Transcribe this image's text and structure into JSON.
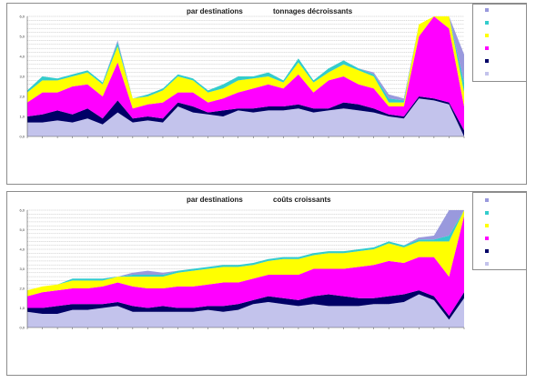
{
  "charts": [
    {
      "title_left": "par destinations",
      "title_right": "tonnages décroissants"
    },
    {
      "title_left": "par destinations",
      "title_right": "coûts croissants"
    }
  ],
  "chart_data": [
    {
      "type": "area",
      "title": "par destinations tonnages décroissants",
      "ylim": [
        0,
        6
      ],
      "yticks": [
        "0,0",
        "1,0",
        "2,0",
        "3,0",
        "4,0",
        "5,0",
        "6,0"
      ],
      "grid": true,
      "legend_position": "right",
      "series_colors": [
        "#c3c3ec",
        "#000066",
        "#ff00ff",
        "#ffff00",
        "#33cccc",
        "#9999dd"
      ],
      "legend_colors": [
        "#9999dd",
        "#33cccc",
        "#ffff00",
        "#ff00ff",
        "#000066",
        "#c3c3ec"
      ],
      "series": [
        {
          "values": [
            0.7,
            0.7,
            0.8,
            0.7,
            0.9,
            0.6,
            1.2,
            0.7,
            0.8,
            0.7,
            1.5,
            1.2,
            1.1,
            1.0,
            1.3,
            1.2,
            1.3,
            1.3,
            1.4,
            1.2,
            1.3,
            1.4,
            1.3,
            1.2,
            1.0,
            0.9,
            1.9,
            1.8,
            1.6,
            0.0
          ]
        },
        {
          "values": [
            0.3,
            0.4,
            0.5,
            0.4,
            0.5,
            0.3,
            0.6,
            0.2,
            0.2,
            0.2,
            0.2,
            0.3,
            0.1,
            0.3,
            0.1,
            0.2,
            0.2,
            0.2,
            0.2,
            0.2,
            0.1,
            0.3,
            0.3,
            0.2,
            0.1,
            0.1,
            0.1,
            0.1,
            0.1,
            0.3
          ]
        },
        {
          "values": [
            0.7,
            1.1,
            0.9,
            1.4,
            1.2,
            1.1,
            1.9,
            0.5,
            0.6,
            0.8,
            0.5,
            0.7,
            0.5,
            0.6,
            0.8,
            1.0,
            1.1,
            0.9,
            1.5,
            0.8,
            1.4,
            1.3,
            1.0,
            1.0,
            0.4,
            0.5,
            3.0,
            5.2,
            3.7,
            1.2
          ]
        },
        {
          "values": [
            0.5,
            0.6,
            0.6,
            0.5,
            0.6,
            0.6,
            0.8,
            0.5,
            0.4,
            0.6,
            0.8,
            0.6,
            0.5,
            0.5,
            0.6,
            0.5,
            0.4,
            0.3,
            0.6,
            0.5,
            0.4,
            0.6,
            0.7,
            0.6,
            0.2,
            0.2,
            0.6,
            1.2,
            0.9,
            0.7
          ]
        },
        {
          "values": [
            0.1,
            0.2,
            0.1,
            0.1,
            0.1,
            0.1,
            0.2,
            0.0,
            0.1,
            0.1,
            0.1,
            0.1,
            0.1,
            0.2,
            0.2,
            0.1,
            0.2,
            0.1,
            0.2,
            0.1,
            0.2,
            0.2,
            0.1,
            0.1,
            0.2,
            0.1,
            0.0,
            0.1,
            0.1,
            0.5
          ]
        },
        {
          "values": [
            0.0,
            0.0,
            0.0,
            0.0,
            0.0,
            0.0,
            0.1,
            0.0,
            0.0,
            0.0,
            0.0,
            0.0,
            0.0,
            0.0,
            0.0,
            0.0,
            0.0,
            0.0,
            0.0,
            0.0,
            0.0,
            0.0,
            0.0,
            0.1,
            0.2,
            0.1,
            0.0,
            0.2,
            0.3,
            1.4
          ]
        }
      ]
    },
    {
      "type": "area",
      "title": "par destinations coûts croissants",
      "ylim": [
        0,
        6
      ],
      "yticks": [
        "0,0",
        "1,0",
        "2,0",
        "3,0",
        "4,0",
        "5,0",
        "6,0"
      ],
      "grid": true,
      "legend_position": "right",
      "series_colors": [
        "#c3c3ec",
        "#000066",
        "#ff00ff",
        "#ffff00",
        "#33cccc",
        "#9999dd"
      ],
      "legend_colors": [
        "#9999dd",
        "#33cccc",
        "#ffff00",
        "#ff00ff",
        "#000066",
        "#c3c3ec"
      ],
      "series": [
        {
          "values": [
            0.8,
            0.7,
            0.7,
            0.9,
            0.9,
            1.0,
            1.1,
            0.8,
            0.8,
            0.8,
            0.8,
            0.8,
            0.9,
            0.8,
            0.9,
            1.2,
            1.3,
            1.2,
            1.1,
            1.2,
            1.1,
            1.1,
            1.1,
            1.2,
            1.2,
            1.3,
            1.7,
            1.4,
            0.4,
            1.5
          ]
        },
        {
          "values": [
            0.2,
            0.3,
            0.4,
            0.3,
            0.3,
            0.2,
            0.2,
            0.3,
            0.2,
            0.3,
            0.2,
            0.2,
            0.2,
            0.3,
            0.3,
            0.2,
            0.3,
            0.3,
            0.3,
            0.4,
            0.6,
            0.5,
            0.4,
            0.3,
            0.4,
            0.4,
            0.2,
            0.2,
            0.2,
            0.3
          ]
        },
        {
          "values": [
            0.6,
            0.8,
            0.8,
            0.8,
            0.8,
            0.9,
            1.0,
            1.0,
            1.0,
            0.9,
            1.1,
            1.1,
            1.1,
            1.2,
            1.1,
            1.1,
            1.1,
            1.2,
            1.3,
            1.4,
            1.3,
            1.4,
            1.6,
            1.7,
            1.8,
            1.6,
            1.7,
            2.0,
            2.0,
            3.9
          ]
        },
        {
          "values": [
            0.3,
            0.3,
            0.3,
            0.4,
            0.4,
            0.3,
            0.3,
            0.5,
            0.6,
            0.6,
            0.7,
            0.8,
            0.8,
            0.8,
            0.8,
            0.7,
            0.7,
            0.8,
            0.8,
            0.7,
            0.8,
            0.8,
            0.8,
            0.8,
            0.9,
            0.8,
            0.8,
            0.8,
            1.8,
            0.3
          ]
        },
        {
          "values": [
            0.0,
            0.0,
            0.0,
            0.1,
            0.1,
            0.1,
            0.0,
            0.1,
            0.1,
            0.1,
            0.1,
            0.1,
            0.1,
            0.1,
            0.1,
            0.1,
            0.1,
            0.1,
            0.1,
            0.1,
            0.1,
            0.1,
            0.1,
            0.1,
            0.1,
            0.1,
            0.1,
            0.1,
            0.3,
            0.0
          ]
        },
        {
          "values": [
            0.0,
            0.0,
            0.0,
            0.0,
            0.0,
            0.0,
            0.0,
            0.1,
            0.2,
            0.1,
            0.0,
            0.0,
            0.0,
            0.0,
            0.0,
            0.0,
            0.0,
            0.0,
            0.0,
            0.0,
            0.0,
            0.0,
            0.0,
            0.0,
            0.0,
            0.0,
            0.1,
            0.2,
            1.7,
            0.9
          ]
        }
      ]
    }
  ]
}
